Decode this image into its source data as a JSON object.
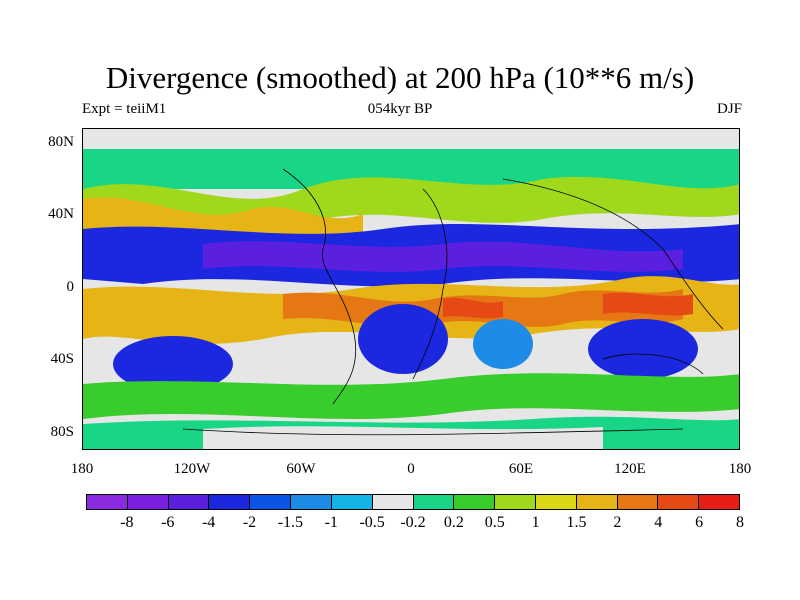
{
  "title": "Divergence (smoothed) at 200 hPa (10**6 m/s)",
  "subtitle_left": "Expt = teiiM1",
  "subtitle_center": "054kyr BP",
  "subtitle_right": "DJF",
  "lat_labels": [
    "80N",
    "40N",
    "0",
    "40S",
    "80S"
  ],
  "lon_labels": [
    "180",
    "120W",
    "60W",
    "0",
    "60E",
    "120E",
    "180"
  ],
  "colorbar": {
    "labels": [
      "-8",
      "-6",
      "-4",
      "-2",
      "-1.5",
      "-1",
      "-0.5",
      "-0.2",
      "0.2",
      "0.5",
      "1",
      "1.5",
      "2",
      "4",
      "6",
      "8"
    ],
    "colors": [
      "#8a2be2",
      "#7a1fe0",
      "#5b1fe0",
      "#1c28e0",
      "#0a55e6",
      "#1e8ce6",
      "#14b4e6",
      "#e6e6e6",
      "#18d686",
      "#38cc2c",
      "#a0d81c",
      "#d8d814",
      "#e6b414",
      "#e67814",
      "#e64a14",
      "#e61e14"
    ]
  },
  "map": {
    "variable": "Divergence (smoothed)",
    "level": "200 hPa",
    "units": "10**6 m/s",
    "season": "DJF"
  }
}
